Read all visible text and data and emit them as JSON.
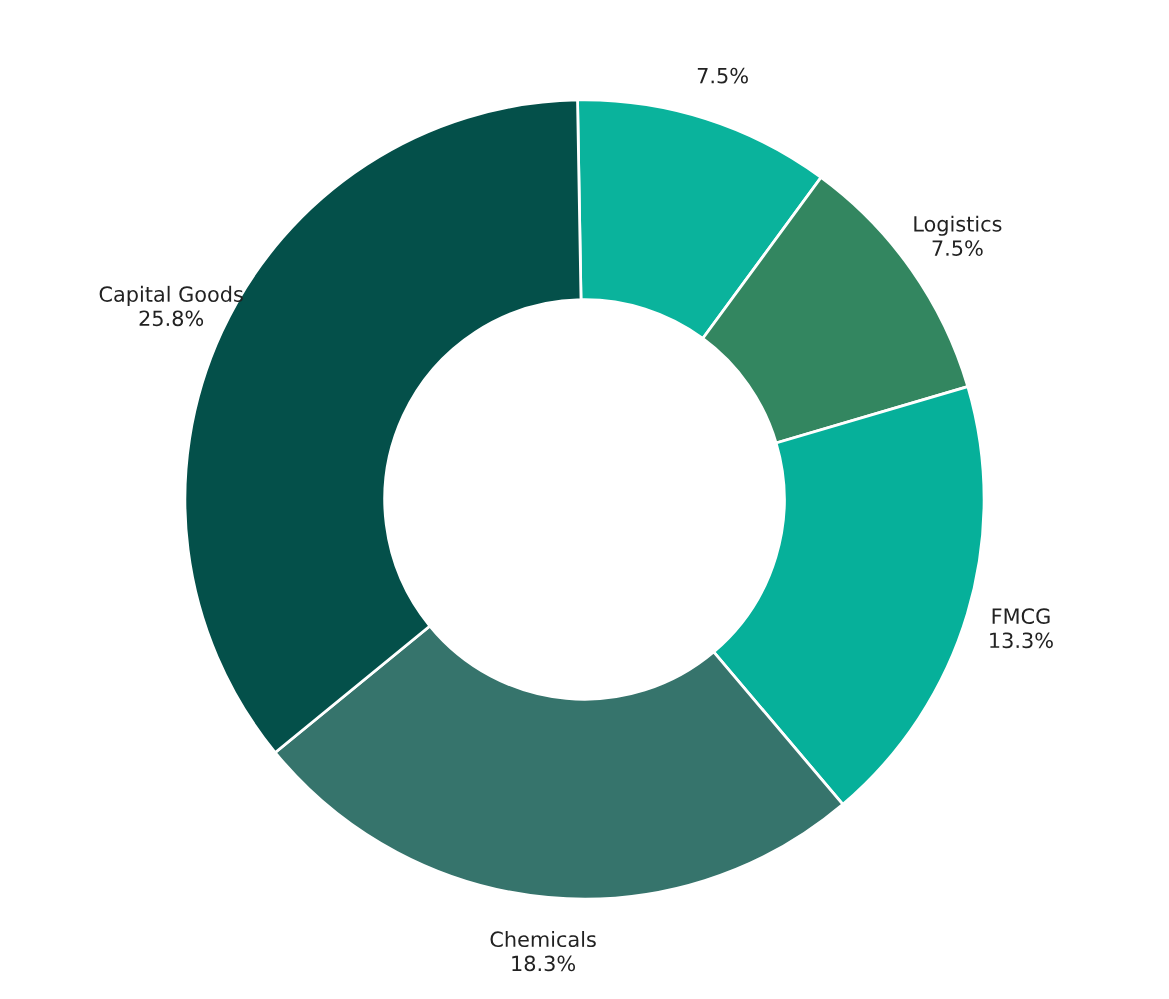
{
  "chart_data": {
    "type": "donut",
    "categories": [
      null,
      "Logistics",
      "FMCG",
      "Chemicals",
      "Capital Goods"
    ],
    "values": [
      7.5,
      7.5,
      13.3,
      18.3,
      25.8
    ],
    "colors": [
      "#0ab39c",
      "#338660",
      "#06b09a",
      "#36746c",
      "#04504a"
    ],
    "value_labels": [
      "7.5%",
      "7.5%",
      "13.3%",
      "18.3%",
      "25.8%"
    ]
  }
}
